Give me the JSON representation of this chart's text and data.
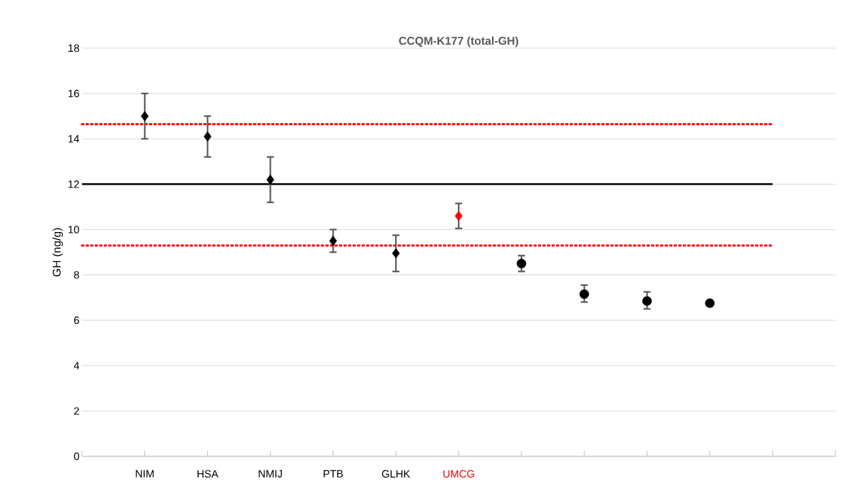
{
  "chart_data": {
    "type": "scatter",
    "title": "CCQM-K177 (total-GH)",
    "ylabel": "GH (ng/g)",
    "categories": [
      null,
      "NIM",
      "HSA",
      "NMIJ",
      "PTB",
      "GLHK",
      "UMCG",
      null,
      null,
      null,
      null,
      null,
      null
    ],
    "series": [
      {
        "marker": "diamond",
        "color": "#000000",
        "colors": [
          "#000000",
          "#000000",
          "#000000",
          "#000000",
          "#000000",
          "#000000",
          "#ff0000",
          "#000000",
          "#000000",
          "#000000",
          "#000000",
          "#000000",
          "#000000"
        ],
        "values": [
          null,
          15.0,
          14.1,
          12.2,
          9.5,
          8.95,
          10.6,
          null,
          null,
          null,
          null,
          null,
          null
        ],
        "errors": [
          null,
          [
            14.0,
            16.0
          ],
          [
            13.2,
            15.0
          ],
          [
            11.2,
            13.2
          ],
          [
            9.0,
            10.0
          ],
          [
            8.15,
            9.75
          ],
          [
            10.05,
            11.15
          ],
          null,
          null,
          null,
          null,
          null,
          null
        ]
      },
      {
        "marker": "circle",
        "color": "#000000",
        "values": [
          null,
          null,
          null,
          null,
          null,
          null,
          null,
          8.5,
          7.15,
          6.85,
          6.75,
          null,
          null
        ],
        "errors": [
          null,
          null,
          null,
          null,
          null,
          null,
          null,
          [
            8.15,
            8.85
          ],
          [
            6.8,
            7.55
          ],
          [
            6.5,
            7.25
          ],
          null,
          null,
          null
        ]
      }
    ],
    "ylim": [
      0,
      18
    ],
    "yticks": [
      0,
      2,
      4,
      6,
      8,
      10,
      12,
      14,
      16,
      18
    ],
    "grid": "y",
    "ref_lines": [
      {
        "axis": "y",
        "value": 12.0,
        "color": "#000000",
        "line_style": "solid"
      },
      {
        "axis": "y",
        "value": 14.65,
        "color": "#ff0000",
        "line_style": "dotted"
      },
      {
        "axis": "y",
        "value": 9.3,
        "color": "#ff0000",
        "line_style": "dotted"
      }
    ]
  }
}
